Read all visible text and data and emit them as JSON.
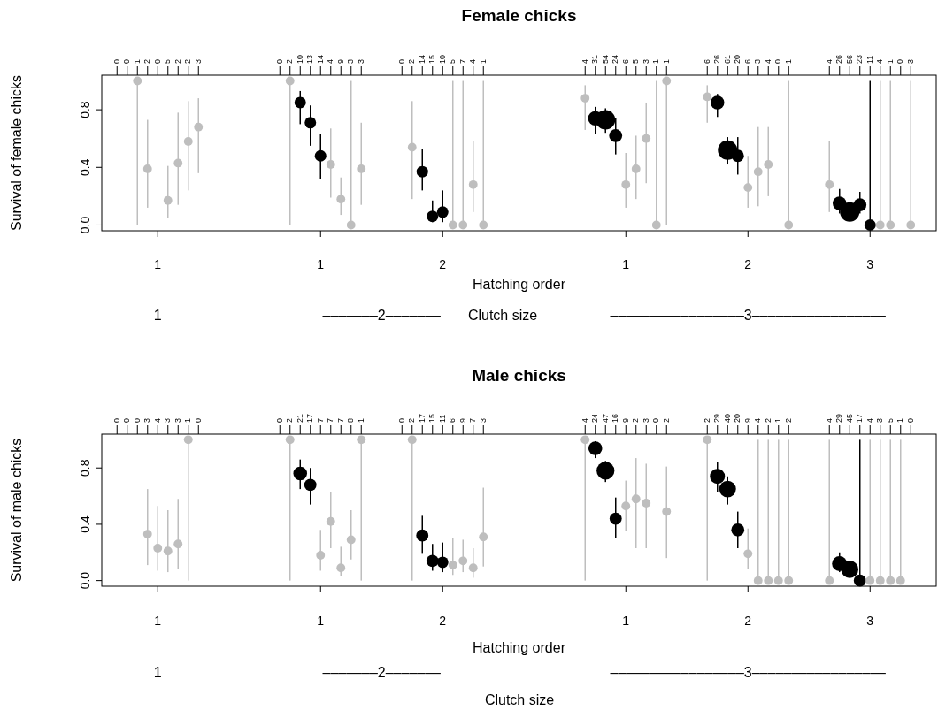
{
  "chart_data": [
    {
      "type": "bubble",
      "title": "Female chicks",
      "xlabel": "Hatching order",
      "ylabel": "Survival of female chicks",
      "annotations": [
        "1",
        "1",
        "2",
        "1",
        "2",
        "3",
        "1",
        "–––––––2–––––––",
        "–––––––––––––––––3–––––––––––––––––",
        "Clutch size"
      ],
      "ylim": [
        -0.04,
        1.04
      ],
      "yticks": [
        {
          "value": 0,
          "label": "0.0"
        },
        {
          "value": 0.4,
          "label": "0.4"
        },
        {
          "value": 0.8,
          "label": "0.8"
        }
      ],
      "categories": [
        null,
        "0",
        "0",
        "1",
        "2",
        "0",
        "5",
        "2",
        "2",
        "3",
        null,
        null,
        null,
        null,
        null,
        null,
        null,
        "0",
        "2",
        "10",
        "13",
        "14",
        "4",
        "9",
        "3",
        "3",
        null,
        null,
        null,
        "0",
        "2",
        "14",
        "15",
        "10",
        "5",
        "7",
        "4",
        "1",
        null,
        null,
        null,
        null,
        null,
        null,
        null,
        null,
        null,
        "4",
        "31",
        "54",
        "24",
        "6",
        "5",
        "3",
        "1",
        "1",
        null,
        null,
        null,
        "6",
        "26",
        "61",
        "20",
        "6",
        "3",
        "4",
        "0",
        "1",
        null,
        null,
        null,
        "4",
        "26",
        "56",
        "23",
        "11",
        "4",
        "1",
        "0",
        "3",
        null,
        null
      ],
      "series": [
        {
          "values": [
            null,
            null,
            null,
            1,
            0.39,
            null,
            0.17,
            0.43,
            0.58,
            0.68,
            null,
            null,
            null,
            null,
            null,
            null,
            null,
            null,
            1,
            0.85,
            0.71,
            0.48,
            0.42,
            0.18,
            0,
            0.39,
            null,
            null,
            null,
            null,
            0.54,
            0.37,
            0.06,
            0.09,
            0,
            0,
            0.28,
            0,
            null,
            null,
            null,
            null,
            null,
            null,
            null,
            null,
            null,
            0.88,
            0.74,
            0.73,
            0.62,
            0.28,
            0.39,
            0.6,
            0,
            1,
            null,
            null,
            null,
            0.89,
            0.85,
            0.52,
            0.48,
            0.26,
            0.37,
            0.42,
            null,
            0,
            null,
            null,
            null,
            0.28,
            0.15,
            0.09,
            0.14,
            0,
            0,
            0,
            null,
            0,
            null,
            null
          ],
          "errors": [
            null,
            null,
            null,
            [
              0,
              1
            ],
            [
              0.12,
              0.73
            ],
            null,
            [
              0.05,
              0.41
            ],
            [
              0.14,
              0.78
            ],
            [
              0.24,
              0.86
            ],
            [
              0.36,
              0.88
            ],
            null,
            null,
            null,
            null,
            null,
            null,
            null,
            null,
            [
              0,
              1
            ],
            [
              0.7,
              0.93
            ],
            [
              0.55,
              0.83
            ],
            [
              0.32,
              0.63
            ],
            [
              0.19,
              0.67
            ],
            [
              0.07,
              0.33
            ],
            [
              0,
              1
            ],
            [
              0.14,
              0.71
            ],
            null,
            null,
            null,
            null,
            [
              0.18,
              0.86
            ],
            [
              0.24,
              0.53
            ],
            [
              0.02,
              0.17
            ],
            [
              0.02,
              0.24
            ],
            [
              0,
              1
            ],
            [
              0,
              1
            ],
            [
              0.09,
              0.58
            ],
            [
              0,
              1
            ],
            null,
            null,
            null,
            null,
            null,
            null,
            null,
            null,
            null,
            [
              0.66,
              0.97
            ],
            [
              0.63,
              0.82
            ],
            [
              0.64,
              0.81
            ],
            [
              0.49,
              0.74
            ],
            [
              0.12,
              0.5
            ],
            [
              0.18,
              0.62
            ],
            [
              0.29,
              0.85
            ],
            [
              0,
              1
            ],
            [
              0,
              1
            ],
            null,
            null,
            null,
            [
              0.71,
              0.97
            ],
            [
              0.75,
              0.91
            ],
            [
              0.42,
              0.61
            ],
            [
              0.35,
              0.61
            ],
            [
              0.12,
              0.48
            ],
            [
              0.13,
              0.68
            ],
            [
              0.2,
              0.68
            ],
            null,
            [
              0,
              1
            ],
            null,
            null,
            null,
            [
              0.09,
              0.58
            ],
            [
              0.08,
              0.25
            ],
            [
              0.04,
              0.14
            ],
            [
              0.08,
              0.23
            ],
            [
              0,
              1
            ],
            [
              0,
              1
            ],
            [
              0,
              1
            ],
            null,
            [
              0,
              1
            ],
            null,
            null
          ],
          "sizes": [
            null,
            null,
            null,
            0.2,
            0.2,
            null,
            0.2,
            0.2,
            0.2,
            0.2,
            null,
            null,
            null,
            null,
            null,
            null,
            null,
            null,
            0.2,
            0.35,
            0.35,
            0.35,
            0.2,
            0.2,
            0.2,
            0.2,
            null,
            null,
            null,
            null,
            0.2,
            0.35,
            0.35,
            0.35,
            0.2,
            0.2,
            0.2,
            0.2,
            null,
            null,
            null,
            null,
            null,
            null,
            null,
            null,
            null,
            0.2,
            0.55,
            1,
            0.45,
            0.2,
            0.2,
            0.2,
            0.2,
            0.2,
            null,
            null,
            null,
            0.2,
            0.5,
            1,
            0.4,
            0.2,
            0.2,
            0.2,
            null,
            0.2,
            null,
            null,
            null,
            0.2,
            0.5,
            1,
            0.45,
            0.35,
            0.2,
            0.2,
            null,
            0.2,
            null,
            null
          ],
          "colors": [
            null,
            null,
            null,
            "#bebebe",
            "#bebebe",
            null,
            "#bebebe",
            "#bebebe",
            "#bebebe",
            "#bebebe",
            null,
            null,
            null,
            null,
            null,
            null,
            null,
            null,
            "#bebebe",
            "#000000",
            "#000000",
            "#000000",
            "#bebebe",
            "#bebebe",
            "#bebebe",
            "#bebebe",
            null,
            null,
            null,
            null,
            "#bebebe",
            "#000000",
            "#000000",
            "#000000",
            "#bebebe",
            "#bebebe",
            "#bebebe",
            "#bebebe",
            null,
            null,
            null,
            null,
            null,
            null,
            null,
            null,
            null,
            "#bebebe",
            "#000000",
            "#000000",
            "#000000",
            "#bebebe",
            "#bebebe",
            "#bebebe",
            "#bebebe",
            "#bebebe",
            null,
            null,
            null,
            "#bebebe",
            "#000000",
            "#000000",
            "#000000",
            "#bebebe",
            "#bebebe",
            "#bebebe",
            null,
            "#bebebe",
            null,
            null,
            null,
            "#bebebe",
            "#000000",
            "#000000",
            "#000000",
            "#000000",
            "#bebebe",
            "#bebebe",
            null,
            "#bebebe",
            null,
            null
          ]
        }
      ]
    },
    {
      "type": "bubble",
      "title": "Male chicks",
      "xlabel": "Hatching order",
      "ylabel": "Survival of male chicks",
      "annotations": [
        "1",
        "1",
        "2",
        "1",
        "2",
        "3",
        "1",
        "–––––––2–––––––",
        "–––––––––––––––––3–––––––––––––––––",
        "Clutch size"
      ],
      "ylim": [
        -0.04,
        1.04
      ],
      "yticks": [
        {
          "value": 0,
          "label": "0.0"
        },
        {
          "value": 0.4,
          "label": "0.4"
        },
        {
          "value": 0.8,
          "label": "0.8"
        }
      ],
      "categories": [
        null,
        "0",
        "0",
        "0",
        "3",
        "4",
        "3",
        "3",
        "1",
        "0",
        null,
        null,
        null,
        null,
        null,
        null,
        null,
        "0",
        "2",
        "21",
        "17",
        "7",
        "7",
        "7",
        "8",
        "1",
        null,
        null,
        null,
        "0",
        "2",
        "17",
        "15",
        "11",
        "6",
        "9",
        "7",
        "3",
        null,
        null,
        null,
        null,
        null,
        null,
        null,
        null,
        null,
        "4",
        "24",
        "47",
        "16",
        "9",
        "2",
        "3",
        "0",
        "2",
        null,
        null,
        null,
        "2",
        "29",
        "40",
        "20",
        "9",
        "4",
        "2",
        "1",
        "2",
        null,
        null,
        null,
        "4",
        "29",
        "45",
        "17",
        "4",
        "3",
        "5",
        "1",
        "0",
        null,
        null
      ],
      "series": [
        {
          "values": [
            null,
            null,
            null,
            null,
            0.33,
            0.23,
            0.21,
            0.26,
            1,
            null,
            null,
            null,
            null,
            null,
            null,
            null,
            null,
            null,
            1,
            0.76,
            0.68,
            0.18,
            0.42,
            0.09,
            0.29,
            1,
            null,
            null,
            null,
            null,
            1,
            0.32,
            0.14,
            0.13,
            0.11,
            0.14,
            0.09,
            0.31,
            null,
            null,
            null,
            null,
            null,
            null,
            null,
            null,
            null,
            1,
            0.94,
            0.78,
            0.44,
            0.53,
            0.58,
            0.55,
            null,
            0.49,
            null,
            null,
            null,
            1,
            0.74,
            0.65,
            0.36,
            0.19,
            0,
            0,
            0,
            0,
            null,
            null,
            null,
            0,
            0.12,
            0.08,
            0,
            0,
            0,
            0,
            0,
            null,
            null,
            null
          ],
          "errors": [
            null,
            null,
            null,
            null,
            [
              0.11,
              0.65
            ],
            [
              0.07,
              0.53
            ],
            [
              0.06,
              0.5
            ],
            [
              0.08,
              0.58
            ],
            [
              0,
              1
            ],
            null,
            null,
            null,
            null,
            null,
            null,
            null,
            null,
            null,
            [
              0,
              1
            ],
            [
              0.65,
              0.86
            ],
            [
              0.54,
              0.8
            ],
            [
              0.07,
              0.36
            ],
            [
              0.23,
              0.63
            ],
            [
              0.03,
              0.24
            ],
            [
              0.15,
              0.5
            ],
            [
              0,
              1
            ],
            null,
            null,
            null,
            null,
            [
              0,
              1
            ],
            [
              0.19,
              0.46
            ],
            [
              0.07,
              0.26
            ],
            [
              0.06,
              0.27
            ],
            [
              0.04,
              0.3
            ],
            [
              0.06,
              0.29
            ],
            [
              0.02,
              0.23
            ],
            [
              0.1,
              0.66
            ],
            null,
            null,
            null,
            null,
            null,
            null,
            null,
            null,
            null,
            [
              0,
              1
            ],
            [
              0.87,
              0.99
            ],
            [
              0.7,
              0.85
            ],
            [
              0.3,
              0.59
            ],
            [
              0.35,
              0.71
            ],
            [
              0.23,
              0.87
            ],
            [
              0.23,
              0.83
            ],
            null,
            [
              0.16,
              0.81
            ],
            null,
            null,
            null,
            [
              0,
              1
            ],
            [
              0.63,
              0.84
            ],
            [
              0.54,
              0.74
            ],
            [
              0.23,
              0.49
            ],
            [
              0.08,
              0.37
            ],
            [
              0,
              1
            ],
            [
              0,
              1
            ],
            [
              0,
              1
            ],
            [
              0,
              1
            ],
            null,
            null,
            null,
            [
              0,
              1
            ],
            [
              0.06,
              0.2
            ],
            [
              0.04,
              0.12
            ],
            [
              0,
              1
            ],
            [
              0,
              1
            ],
            [
              0,
              1
            ],
            [
              0,
              1
            ],
            [
              0,
              1
            ],
            null,
            null,
            null
          ],
          "sizes": [
            null,
            null,
            null,
            null,
            0.24,
            0.24,
            0.24,
            0.24,
            0.24,
            null,
            null,
            null,
            null,
            null,
            null,
            null,
            null,
            null,
            0.24,
            0.59,
            0.47,
            0.24,
            0.24,
            0.24,
            0.24,
            0.24,
            null,
            null,
            null,
            null,
            0.24,
            0.47,
            0.47,
            0.41,
            0.24,
            0.24,
            0.24,
            0.24,
            null,
            null,
            null,
            null,
            null,
            null,
            null,
            null,
            null,
            0.24,
            0.59,
            1,
            0.47,
            0.24,
            0.24,
            0.24,
            null,
            0.24,
            null,
            null,
            null,
            0.24,
            0.71,
            0.88,
            0.53,
            0.24,
            0.24,
            0.24,
            0.24,
            0.24,
            null,
            null,
            null,
            0.24,
            0.71,
            0.94,
            0.47,
            0.24,
            0.24,
            0.24,
            0.24,
            null,
            null,
            null
          ],
          "colors": [
            null,
            null,
            null,
            null,
            "#bebebe",
            "#bebebe",
            "#bebebe",
            "#bebebe",
            "#bebebe",
            null,
            null,
            null,
            null,
            null,
            null,
            null,
            null,
            null,
            "#bebebe",
            "#000000",
            "#000000",
            "#bebebe",
            "#bebebe",
            "#bebebe",
            "#bebebe",
            "#bebebe",
            null,
            null,
            null,
            null,
            "#bebebe",
            "#000000",
            "#000000",
            "#000000",
            "#bebebe",
            "#bebebe",
            "#bebebe",
            "#bebebe",
            null,
            null,
            null,
            null,
            null,
            null,
            null,
            null,
            null,
            "#bebebe",
            "#000000",
            "#000000",
            "#000000",
            "#bebebe",
            "#bebebe",
            "#bebebe",
            null,
            "#bebebe",
            null,
            null,
            null,
            "#bebebe",
            "#000000",
            "#000000",
            "#000000",
            "#bebebe",
            "#bebebe",
            "#bebebe",
            "#bebebe",
            "#bebebe",
            null,
            null,
            null,
            "#bebebe",
            "#000000",
            "#000000",
            "#000000",
            "#bebebe",
            "#bebebe",
            "#bebebe",
            "#bebebe",
            null,
            null,
            null
          ]
        }
      ]
    }
  ]
}
